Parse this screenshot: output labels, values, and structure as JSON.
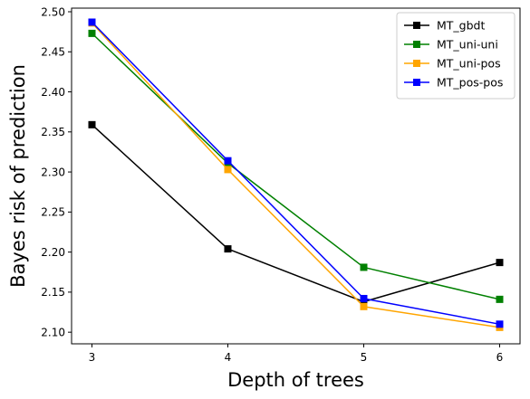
{
  "chart_data": {
    "type": "line",
    "xlabel": "Depth of trees",
    "ylabel": "Bayes risk of prediction",
    "x": [
      3,
      4,
      5,
      6
    ],
    "xlim": [
      2.85,
      6.15
    ],
    "ylim": [
      2.0855,
      2.5045
    ],
    "xticks": [
      3,
      4,
      5,
      6
    ],
    "xtick_labels": [
      "3",
      "4",
      "5",
      "6"
    ],
    "yticks": [
      2.1,
      2.15,
      2.2,
      2.25,
      2.3,
      2.35,
      2.4,
      2.45,
      2.5
    ],
    "ytick_labels": [
      "2.10",
      "2.15",
      "2.20",
      "2.25",
      "2.30",
      "2.35",
      "2.40",
      "2.45",
      "2.50"
    ],
    "grid": false,
    "legend_position": "top-right",
    "series": [
      {
        "name": "MT_gbdt",
        "color": "#000000",
        "marker": "square",
        "values": [
          2.359,
          2.204,
          2.138,
          2.187
        ]
      },
      {
        "name": "MT_uni-uni",
        "color": "#008000",
        "marker": "square",
        "values": [
          2.473,
          2.311,
          2.181,
          2.141
        ]
      },
      {
        "name": "MT_uni-pos",
        "color": "#ffa500",
        "marker": "square",
        "values": [
          2.486,
          2.303,
          2.132,
          2.106
        ]
      },
      {
        "name": "MT_pos-pos",
        "color": "#0000ff",
        "marker": "square",
        "values": [
          2.487,
          2.314,
          2.142,
          2.11
        ]
      }
    ]
  }
}
